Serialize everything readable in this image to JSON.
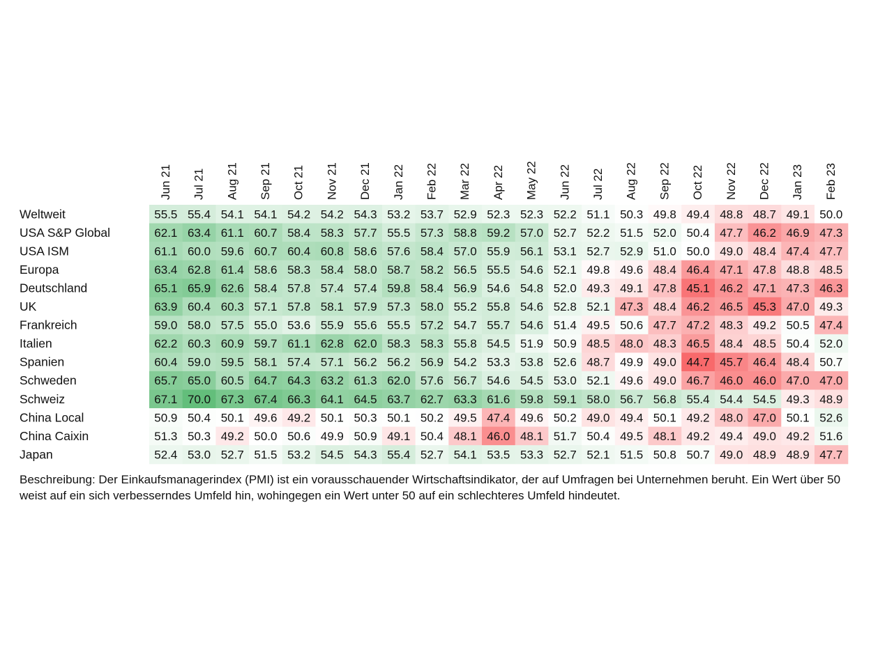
{
  "chart_data": {
    "type": "heatmap",
    "columns": [
      "Jun 21",
      "Jul 21",
      "Aug 21",
      "Sep 21",
      "Oct 21",
      "Nov 21",
      "Dec 21",
      "Jan 22",
      "Feb 22",
      "Mar 22",
      "Apr 22",
      "May 22",
      "Jun 22",
      "Jul 22",
      "Aug 22",
      "Sep 22",
      "Oct 22",
      "Nov 22",
      "Dec 22",
      "Jan 23",
      "Feb 23"
    ],
    "rows": [
      {
        "name": "Weltweit",
        "values": [
          55.5,
          55.4,
          54.1,
          54.1,
          54.2,
          54.2,
          54.3,
          53.2,
          53.7,
          52.9,
          52.3,
          52.3,
          52.2,
          51.1,
          50.3,
          49.8,
          49.4,
          48.8,
          48.7,
          49.1,
          50.0
        ]
      },
      {
        "name": "USA S&P Global",
        "values": [
          62.1,
          63.4,
          61.1,
          60.7,
          58.4,
          58.3,
          57.7,
          55.5,
          57.3,
          58.8,
          59.2,
          57.0,
          52.7,
          52.2,
          51.5,
          52.0,
          50.4,
          47.7,
          46.2,
          46.9,
          47.3
        ]
      },
      {
        "name": "USA ISM",
        "values": [
          61.1,
          60.0,
          59.6,
          60.7,
          60.4,
          60.8,
          58.6,
          57.6,
          58.4,
          57.0,
          55.9,
          56.1,
          53.1,
          52.7,
          52.9,
          51.0,
          50.0,
          49.0,
          48.4,
          47.4,
          47.7
        ]
      },
      {
        "name": "Europa",
        "values": [
          63.4,
          62.8,
          61.4,
          58.6,
          58.3,
          58.4,
          58.0,
          58.7,
          58.2,
          56.5,
          55.5,
          54.6,
          52.1,
          49.8,
          49.6,
          48.4,
          46.4,
          47.1,
          47.8,
          48.8,
          48.5
        ]
      },
      {
        "name": "Deutschland",
        "values": [
          65.1,
          65.9,
          62.6,
          58.4,
          57.8,
          57.4,
          57.4,
          59.8,
          58.4,
          56.9,
          54.6,
          54.8,
          52.0,
          49.3,
          49.1,
          47.8,
          45.1,
          46.2,
          47.1,
          47.3,
          46.3
        ]
      },
      {
        "name": "UK",
        "values": [
          63.9,
          60.4,
          60.3,
          57.1,
          57.8,
          58.1,
          57.9,
          57.3,
          58.0,
          55.2,
          55.8,
          54.6,
          52.8,
          52.1,
          47.3,
          48.4,
          46.2,
          46.5,
          45.3,
          47.0,
          49.3
        ]
      },
      {
        "name": "Frankreich",
        "values": [
          59.0,
          58.0,
          57.5,
          55.0,
          53.6,
          55.9,
          55.6,
          55.5,
          57.2,
          54.7,
          55.7,
          54.6,
          51.4,
          49.5,
          50.6,
          47.7,
          47.2,
          48.3,
          49.2,
          50.5,
          47.4
        ]
      },
      {
        "name": "Italien",
        "values": [
          62.2,
          60.3,
          60.9,
          59.7,
          61.1,
          62.8,
          62.0,
          58.3,
          58.3,
          55.8,
          54.5,
          51.9,
          50.9,
          48.5,
          48.0,
          48.3,
          46.5,
          48.4,
          48.5,
          50.4,
          52.0
        ]
      },
      {
        "name": "Spanien",
        "values": [
          60.4,
          59.0,
          59.5,
          58.1,
          57.4,
          57.1,
          56.2,
          56.2,
          56.9,
          54.2,
          53.3,
          53.8,
          52.6,
          48.7,
          49.9,
          49.0,
          44.7,
          45.7,
          46.4,
          48.4,
          50.7
        ]
      },
      {
        "name": "Schweden",
        "values": [
          65.7,
          65.0,
          60.5,
          64.7,
          64.3,
          63.2,
          61.3,
          62.0,
          57.6,
          56.7,
          54.6,
          54.5,
          53.0,
          52.1,
          49.6,
          49.0,
          46.7,
          46.0,
          46.0,
          47.0,
          47.0
        ]
      },
      {
        "name": "Schweiz",
        "values": [
          67.1,
          70.0,
          67.3,
          67.4,
          66.3,
          64.1,
          64.5,
          63.7,
          62.7,
          63.3,
          61.6,
          59.8,
          59.1,
          58.0,
          56.7,
          56.8,
          55.4,
          54.4,
          54.5,
          49.3,
          48.9
        ]
      },
      {
        "name": "China Local",
        "values": [
          50.9,
          50.4,
          50.1,
          49.6,
          49.2,
          50.1,
          50.3,
          50.1,
          50.2,
          49.5,
          47.4,
          49.6,
          50.2,
          49.0,
          49.4,
          50.1,
          49.2,
          48.0,
          47.0,
          50.1,
          52.6
        ]
      },
      {
        "name": "China Caixin",
        "values": [
          51.3,
          50.3,
          49.2,
          50.0,
          50.6,
          49.9,
          50.9,
          49.1,
          50.4,
          48.1,
          46.0,
          48.1,
          51.7,
          50.4,
          49.5,
          48.1,
          49.2,
          49.4,
          49.0,
          49.2,
          51.6
        ]
      },
      {
        "name": "Japan",
        "values": [
          52.4,
          53.0,
          52.7,
          51.5,
          53.2,
          54.5,
          54.3,
          55.4,
          52.7,
          54.1,
          53.5,
          53.3,
          52.7,
          52.1,
          51.5,
          50.8,
          50.7,
          49.0,
          48.9,
          48.9,
          47.7
        ]
      }
    ],
    "center_value": 50,
    "colors": {
      "high": "#63be7b",
      "mid": "#ffffff",
      "low": "#f8696b"
    }
  },
  "description": "Beschreibung: Der Einkaufsmanagerindex (PMI) ist ein vorausschauender Wirtschaftsindikator, der auf Umfragen bei Unternehmen beruht. Ein Wert über 50 weist auf ein sich verbesserndes Umfeld hin, wohingegen ein Wert unter 50 auf ein schlechteres Umfeld hindeutet."
}
